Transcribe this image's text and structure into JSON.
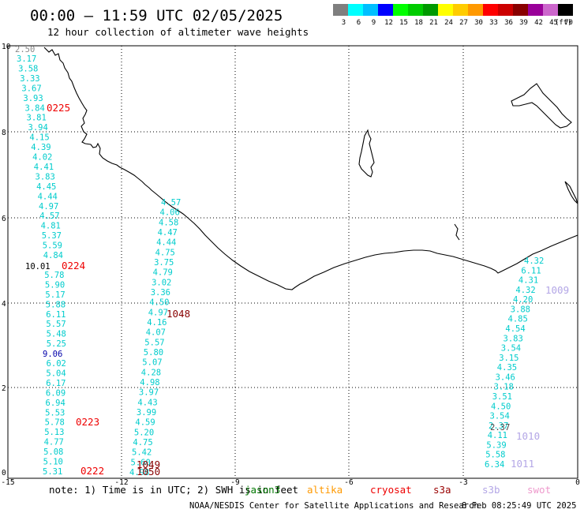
{
  "header": {
    "time_range": "00:00 – 11:59 UTC 02/05/2025",
    "subtitle": "12 hour collection of altimeter wave heights"
  },
  "color_scale": {
    "unit": "(ft)",
    "bins": [
      {
        "label": "3",
        "color": "#7f7f7f"
      },
      {
        "label": "6",
        "color": "#00ffff"
      },
      {
        "label": "9",
        "color": "#00bfff"
      },
      {
        "label": "12",
        "color": "#0000ff"
      },
      {
        "label": "15",
        "color": "#00ff00"
      },
      {
        "label": "18",
        "color": "#00cc00"
      },
      {
        "label": "21",
        "color": "#009900"
      },
      {
        "label": "24",
        "color": "#ffff00"
      },
      {
        "label": "27",
        "color": "#ffcc00"
      },
      {
        "label": "30",
        "color": "#ff9900"
      },
      {
        "label": "33",
        "color": "#ff0000"
      },
      {
        "label": "36",
        "color": "#cc0000"
      },
      {
        "label": "39",
        "color": "#880000"
      },
      {
        "label": "42",
        "color": "#990099"
      },
      {
        "label": "45",
        "color": "#cc66cc"
      },
      {
        "label": "70",
        "color": "#000000"
      }
    ]
  },
  "axes": {
    "x_ticks": [
      "-15",
      "-12",
      "-9",
      "-6",
      "-3",
      "0"
    ],
    "y_ticks": [
      "0",
      "2",
      "4",
      "6",
      "8",
      "10"
    ]
  },
  "tracks": [
    {
      "color": "#00cccc",
      "values": [
        "3.17",
        "3.58",
        "3.33",
        "3.67",
        "3.93",
        "3.84",
        "3.81",
        "3.94",
        "4.15",
        "4.39",
        "4.02",
        "4.41",
        "3.83",
        "4.45",
        "4.44",
        "4.97",
        "4.57",
        "4.81",
        "5.37",
        "5.59",
        "4.84",
        "",
        "5.78",
        "5.90",
        "5.17",
        "5.88",
        "6.11",
        "5.57",
        "5.48",
        "5.25",
        "",
        "6.02",
        "5.04",
        "6.17",
        "6.09",
        "6.94",
        "5.53",
        "5.78",
        "5.13",
        "4.77",
        "5.08",
        "5.10",
        "5.31"
      ]
    },
    {
      "color": "#00cccc",
      "values": [
        "4.57",
        "4.06",
        "4.58",
        "4.47",
        "4.44",
        "4.75",
        "3.75",
        "4.79",
        "3.02",
        "3.36",
        "4.50",
        "4.97",
        "4.16",
        "4.07",
        "5.57",
        "5.80",
        "5.07",
        "4.28",
        "4.98",
        "3.97",
        "4.43",
        "3.99",
        "4.59",
        "5.20",
        "4.75",
        "5.42",
        "5.60",
        "4.98"
      ]
    },
    {
      "color": "#00cccc",
      "values": [
        "4.32",
        "6.11",
        "4.31",
        "4.32",
        "4.20",
        "3.88",
        "4.85",
        "4.54",
        "3.83",
        "3.54",
        "3.15",
        "4.35",
        "3.46",
        "3.18",
        "3.51",
        "4.50",
        "3.54",
        "2.37",
        "4.11",
        "5.39",
        "5.58",
        "6.34"
      ]
    }
  ],
  "special_values": [
    {
      "value": "2.50",
      "color": "#888888"
    },
    {
      "value": "10.01",
      "color": "#000000"
    },
    {
      "value": "9.06",
      "color": "#0000aa"
    },
    {
      "value": "2.37",
      "color": "#444444"
    }
  ],
  "time_labels": [
    {
      "text": "0225",
      "color": "#ee0000"
    },
    {
      "text": "0224",
      "color": "#ee0000"
    },
    {
      "text": "0223",
      "color": "#ee0000"
    },
    {
      "text": "0222",
      "color": "#ee0000"
    },
    {
      "text": "1048",
      "color": "#880000"
    },
    {
      "text": "1049",
      "color": "#880000"
    },
    {
      "text": "1050",
      "color": "#880000"
    },
    {
      "text": "1009",
      "color": "#b3a6e6"
    },
    {
      "text": "1010",
      "color": "#b3a6e6"
    },
    {
      "text": "1011",
      "color": "#b3a6e6"
    }
  ],
  "footer": {
    "note": "note:  1) Time is in UTC;  2) SWH is in feet",
    "sats": [
      {
        "name": "jason3",
        "color": "#007700"
      },
      {
        "name": "altika",
        "color": "#ff9900"
      },
      {
        "name": "cryosat",
        "color": "#ee0000"
      },
      {
        "name": "s3a",
        "color": "#990000"
      },
      {
        "name": "s3b",
        "color": "#b3a6e6"
      },
      {
        "name": "swot",
        "color": "#ee99cc"
      }
    ],
    "credit": "NOAA/NESDIS Center for Satellite Applications and Research",
    "generated": "8 Feb 08:25:49 UTC 2025"
  }
}
